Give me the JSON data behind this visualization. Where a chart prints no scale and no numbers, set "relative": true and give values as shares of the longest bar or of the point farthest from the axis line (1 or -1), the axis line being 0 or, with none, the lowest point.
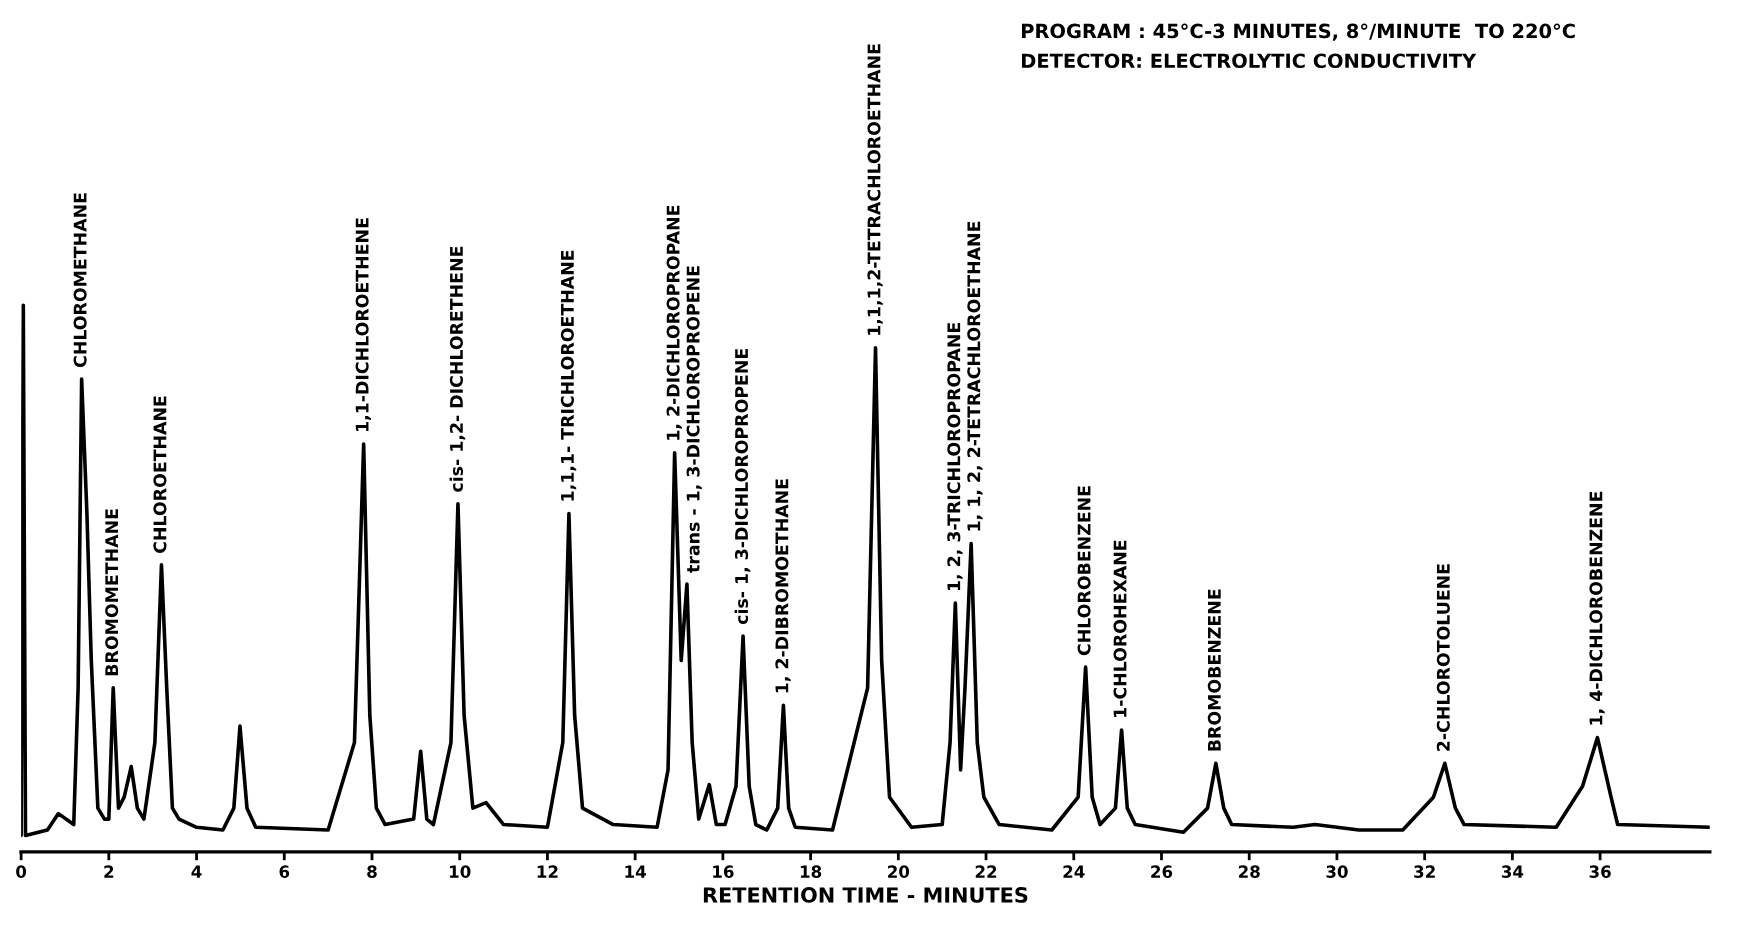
{
  "chart_data": {
    "type": "line",
    "relative": true,
    "xlabel": "RETENTION TIME - MINUTES",
    "xlim": [
      0,
      38.5
    ],
    "xticks": [
      0,
      2,
      4,
      6,
      8,
      10,
      12,
      14,
      16,
      18,
      20,
      22,
      24,
      26,
      28,
      30,
      32,
      34,
      36
    ],
    "x": [
      0,
      0.05,
      0.1,
      0.6,
      0.85,
      1.2,
      1.3,
      1.38,
      1.5,
      1.6,
      1.75,
      1.9,
      2.0,
      2.1,
      2.22,
      2.35,
      2.51,
      2.65,
      2.8,
      3.05,
      3.2,
      3.32,
      3.45,
      3.6,
      4.0,
      4.6,
      4.85,
      4.99,
      5.15,
      5.35,
      7.0,
      7.6,
      7.81,
      7.95,
      8.1,
      8.3,
      8.95,
      9.11,
      9.25,
      9.4,
      9.8,
      9.96,
      10.1,
      10.3,
      10.6,
      11.0,
      12.0,
      12.35,
      12.49,
      12.62,
      12.8,
      13.5,
      14.5,
      14.75,
      14.9,
      15.05,
      15.18,
      15.3,
      15.45,
      15.69,
      15.85,
      16.05,
      16.3,
      16.46,
      16.6,
      16.75,
      17.0,
      17.25,
      17.38,
      17.5,
      17.65,
      18.5,
      19.3,
      19.48,
      19.62,
      19.8,
      20.3,
      21.0,
      21.18,
      21.3,
      21.42,
      21.52,
      21.66,
      21.8,
      21.95,
      22.3,
      23.5,
      24.1,
      24.27,
      24.42,
      24.6,
      24.95,
      25.09,
      25.22,
      25.4,
      26.5,
      27.05,
      27.24,
      27.42,
      27.6,
      29.0,
      29.5,
      30.5,
      31.5,
      32.2,
      32.46,
      32.7,
      32.9,
      35.0,
      35.6,
      35.94,
      36.25,
      36.4,
      38.5
    ],
    "values": [
      0.03,
      1.0,
      0.03,
      0.04,
      0.07,
      0.05,
      0.3,
      0.865,
      0.62,
      0.35,
      0.08,
      0.06,
      0.06,
      0.3,
      0.08,
      0.1,
      0.156,
      0.08,
      0.06,
      0.2,
      0.525,
      0.3,
      0.08,
      0.06,
      0.045,
      0.04,
      0.08,
      0.23,
      0.08,
      0.045,
      0.04,
      0.2,
      0.746,
      0.25,
      0.08,
      0.05,
      0.06,
      0.184,
      0.06,
      0.05,
      0.2,
      0.637,
      0.25,
      0.08,
      0.09,
      0.05,
      0.045,
      0.2,
      0.619,
      0.25,
      0.08,
      0.05,
      0.045,
      0.15,
      0.73,
      0.35,
      0.49,
      0.2,
      0.06,
      0.123,
      0.05,
      0.05,
      0.12,
      0.395,
      0.12,
      0.05,
      0.04,
      0.08,
      0.268,
      0.08,
      0.045,
      0.04,
      0.3,
      0.922,
      0.35,
      0.1,
      0.045,
      0.05,
      0.2,
      0.455,
      0.15,
      0.3,
      0.564,
      0.2,
      0.1,
      0.05,
      0.04,
      0.1,
      0.338,
      0.1,
      0.05,
      0.08,
      0.223,
      0.08,
      0.05,
      0.036,
      0.08,
      0.162,
      0.08,
      0.05,
      0.045,
      0.05,
      0.04,
      0.04,
      0.1,
      0.162,
      0.08,
      0.05,
      0.045,
      0.12,
      0.209,
      0.1,
      0.05,
      0.045
    ],
    "color": "#000000",
    "annotations": [
      {
        "text": "CHLOROMETHANE",
        "x": 1.38,
        "y": 0.865
      },
      {
        "text": "BROMOMETHANE",
        "x": 2.1,
        "y": 0.3
      },
      {
        "text": "CHLOROETHANE",
        "x": 3.2,
        "y": 0.525
      },
      {
        "text": "1,1-DICHLOROETHENE",
        "x": 7.81,
        "y": 0.746
      },
      {
        "text": "cis- 1,2- DICHLORETHENE",
        "x": 9.96,
        "y": 0.637
      },
      {
        "text": "1,1,1- TRICHLOROETHANE",
        "x": 12.49,
        "y": 0.619
      },
      {
        "text": "1, 2-DICHLOROPROPANE",
        "x": 14.9,
        "y": 0.73
      },
      {
        "text": "trans - 1, 3-DICHLOROPROPENE",
        "x": 15.18,
        "y": 0.49
      },
      {
        "text": "cis- 1, 3-DICHLOROPROPENE",
        "x": 16.46,
        "y": 0.395
      },
      {
        "text": "1, 2-DIBROMOETHANE",
        "x": 17.38,
        "y": 0.268
      },
      {
        "text": "1,1,1,2-TETRACHLOROETHANE",
        "x": 19.48,
        "y": 0.922
      },
      {
        "text": "1, 2, 3-TRICHLOROPROPANE",
        "x": 21.3,
        "y": 0.455
      },
      {
        "text": "1, 1, 2, 2-TETRACHLOROETHANE",
        "x": 21.66,
        "y": 0.564
      },
      {
        "text": "CHLOROBENZENE",
        "x": 24.27,
        "y": 0.338
      },
      {
        "text": "1-CHLOROHEXANE",
        "x": 25.09,
        "y": 0.223
      },
      {
        "text": "BROMOBENZENE",
        "x": 27.24,
        "y": 0.162
      },
      {
        "text": "2-CHLOROTOLUENE",
        "x": 32.46,
        "y": 0.162
      },
      {
        "text": "1, 4-DICHLOROBENZENE",
        "x": 35.94,
        "y": 0.209
      },
      "PROGRAM : 45°C-3 MINUTES, 8°/MINUTE  TO 220°C",
      "DETECTOR: ELECTROLYTIC CONDUCTIVITY"
    ]
  }
}
